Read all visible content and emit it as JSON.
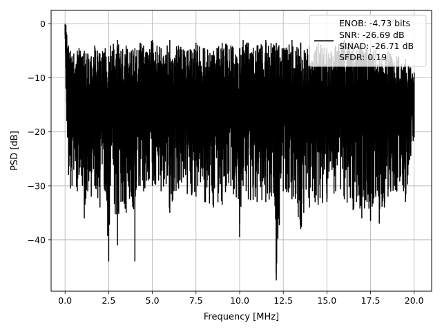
{
  "chart_data": {
    "type": "line",
    "title": "",
    "xlabel": "Frequency [MHz]",
    "ylabel": "PSD [dB]",
    "xlim": [
      -0.8,
      21.0
    ],
    "ylim": [
      -49.5,
      2.5
    ],
    "xticks": [
      0.0,
      2.5,
      5.0,
      7.5,
      10.0,
      12.5,
      15.0,
      17.5,
      20.0
    ],
    "xtick_labels": [
      "0.0",
      "2.5",
      "5.0",
      "7.5",
      "10.0",
      "12.5",
      "15.0",
      "17.5",
      "20.0"
    ],
    "yticks": [
      0,
      -10,
      -20,
      -30,
      -40
    ],
    "ytick_labels": [
      "0",
      "−10",
      "−20",
      "−30",
      "−40"
    ],
    "grid": true,
    "legend_position": "top-right",
    "legend_lines": [
      "ENOB: -4.73 bits",
      "SNR: -26.69 dB",
      "SINAD: -26.71 dB",
      "SFDR: 0.19"
    ],
    "series": [
      {
        "color": "#000000",
        "x": [
          0.0,
          0.05,
          0.1,
          0.2,
          0.3,
          0.4,
          0.5,
          0.7,
          0.8,
          1.0,
          1.1,
          1.3,
          1.5,
          1.7,
          2.0,
          2.3,
          2.5,
          2.6,
          3.0,
          3.2,
          3.5,
          3.8,
          4.0,
          4.3,
          4.5,
          5.0,
          5.5,
          6.0,
          6.5,
          7.0,
          7.5,
          7.6,
          8.0,
          8.5,
          9.0,
          9.5,
          10.0,
          10.2,
          10.5,
          11.0,
          11.5,
          12.0,
          12.1,
          12.5,
          13.0,
          13.5,
          14.0,
          14.5,
          15.0,
          15.5,
          16.0,
          16.5,
          17.0,
          17.3,
          17.5,
          17.8,
          18.0,
          18.5,
          19.0,
          19.5,
          20.0
        ],
        "upper": [
          0.0,
          -0.2,
          -2.0,
          -4.0,
          -5.0,
          -6.0,
          -5.5,
          -5.0,
          -4.5,
          -6.0,
          -5.0,
          -5.5,
          -6.0,
          -4.0,
          -5.5,
          -4.5,
          -6.0,
          -4.0,
          -3.0,
          -5.0,
          -4.0,
          -5.0,
          -4.5,
          -3.5,
          -4.0,
          -3.0,
          -4.5,
          -3.0,
          -4.0,
          -5.0,
          -3.5,
          -4.0,
          -4.5,
          -5.0,
          -3.5,
          -4.0,
          -4.5,
          -3.0,
          -3.5,
          -4.0,
          -3.0,
          -4.0,
          -3.5,
          -4.5,
          -3.0,
          -3.5,
          -4.0,
          -3.5,
          -4.5,
          -4.0,
          -3.0,
          -4.5,
          -3.5,
          -4.0,
          -4.5,
          -5.0,
          -5.5,
          -5.0,
          -6.0,
          -6.5,
          -9.0
        ],
        "lower": [
          -2.0,
          -12.0,
          -18.0,
          -28.0,
          -30.5,
          -30.0,
          -27.0,
          -31.0,
          -28.0,
          -30.0,
          -36.0,
          -31.0,
          -32.0,
          -30.0,
          -34.0,
          -31.0,
          -44.0,
          -30.0,
          -41.0,
          -33.0,
          -35.0,
          -32.0,
          -44.0,
          -30.0,
          -31.0,
          -30.0,
          -31.0,
          -35.0,
          -30.5,
          -31.5,
          -32.0,
          -30.0,
          -33.0,
          -34.0,
          -33.5,
          -30.0,
          -39.5,
          -30.0,
          -32.5,
          -33.0,
          -33.0,
          -32.0,
          -47.5,
          -31.0,
          -32.5,
          -38.0,
          -34.0,
          -33.5,
          -33.0,
          -31.0,
          -32.5,
          -34.5,
          -36.0,
          -33.0,
          -36.5,
          -32.0,
          -37.0,
          -32.0,
          -31.0,
          -33.0,
          -21.0
        ]
      }
    ]
  }
}
